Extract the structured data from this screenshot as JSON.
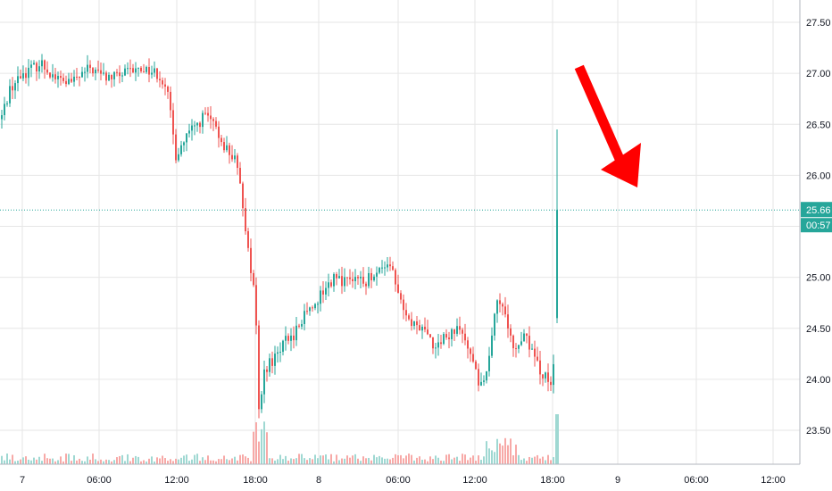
{
  "chart_data": {
    "type": "candlestick",
    "title": "",
    "xlabel": "",
    "ylabel": "",
    "ylim": [
      23.2,
      27.6
    ],
    "grid": true,
    "price_axis_side": "right",
    "y_ticks": [
      "23.50",
      "24.00",
      "24.50",
      "25.00",
      "25.50",
      "26.00",
      "26.50",
      "27.00",
      "27.50"
    ],
    "x_ticks": [
      "7",
      "06:00",
      "12:00",
      "18:00",
      "8",
      "06:00",
      "12:00",
      "18:00",
      "9",
      "06:00",
      "12:00"
    ],
    "last_price": "25.66",
    "last_price_value": 25.66,
    "countdown": "00:57",
    "colors": {
      "up": "#26a69a",
      "down": "#ef5350",
      "volume_up": "#9fd8d2",
      "volume_down": "#f7a9a7",
      "price_line": "#26a69a",
      "grid": "#e6e6e6",
      "arrow": "#ff0000"
    },
    "annotation": {
      "type": "arrow",
      "direction": "down-right",
      "color": "#ff0000"
    },
    "waypoints": [
      [
        0,
        26.55
      ],
      [
        10,
        26.85
      ],
      [
        25,
        27.0
      ],
      [
        45,
        27.1
      ],
      [
        62,
        26.95
      ],
      [
        78,
        26.9
      ],
      [
        100,
        27.05
      ],
      [
        120,
        26.95
      ],
      [
        140,
        27.0
      ],
      [
        160,
        27.05
      ],
      [
        175,
        27.0
      ],
      [
        185,
        26.9
      ],
      [
        196,
        26.2
      ],
      [
        210,
        26.4
      ],
      [
        230,
        26.6
      ],
      [
        250,
        26.3
      ],
      [
        262,
        26.15
      ],
      [
        270,
        25.8
      ],
      [
        278,
        25.2
      ],
      [
        285,
        24.8
      ],
      [
        289,
        23.65
      ],
      [
        295,
        24.1
      ],
      [
        305,
        24.2
      ],
      [
        315,
        24.35
      ],
      [
        330,
        24.45
      ],
      [
        345,
        24.7
      ],
      [
        360,
        24.85
      ],
      [
        375,
        25.0
      ],
      [
        385,
        24.95
      ],
      [
        405,
        24.95
      ],
      [
        425,
        25.05
      ],
      [
        438,
        25.15
      ],
      [
        445,
        24.85
      ],
      [
        455,
        24.6
      ],
      [
        470,
        24.5
      ],
      [
        485,
        24.35
      ],
      [
        500,
        24.4
      ],
      [
        515,
        24.5
      ],
      [
        525,
        24.3
      ],
      [
        535,
        23.95
      ],
      [
        545,
        24.1
      ],
      [
        555,
        24.85
      ],
      [
        565,
        24.6
      ],
      [
        575,
        24.3
      ],
      [
        585,
        24.45
      ],
      [
        595,
        24.25
      ],
      [
        605,
        24.05
      ],
      [
        612,
        24.0
      ],
      [
        618,
        23.85
      ],
      [
        621,
        24.6
      ]
    ],
    "last_candle": {
      "open": 24.6,
      "high": 26.45,
      "low": 24.55,
      "close": 25.66
    }
  }
}
